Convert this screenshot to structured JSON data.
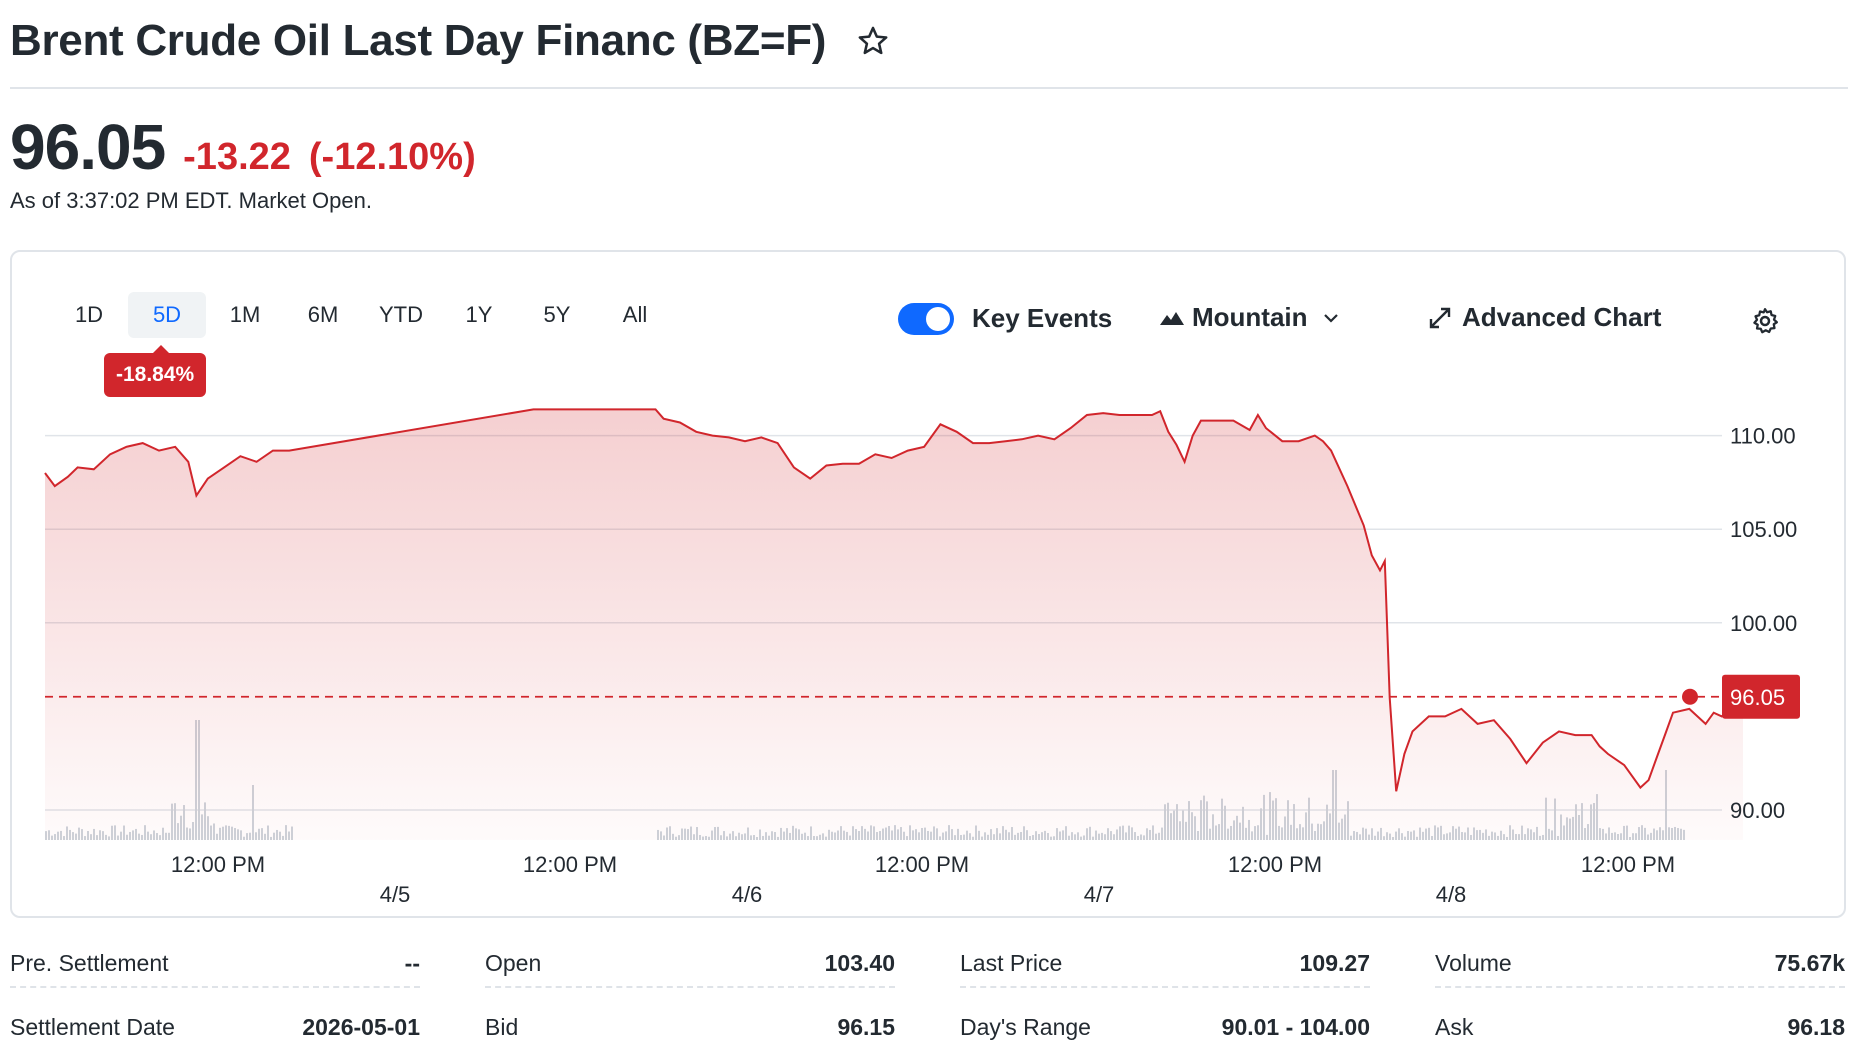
{
  "header": {
    "title": "Brent Crude Oil Last Day Financ (BZ=F)",
    "price": "96.05",
    "change": "-13.22",
    "change_pct": "(-12.10%)",
    "as_of": "As of 3:37:02 PM EDT. Market Open."
  },
  "toolbar": {
    "ranges": [
      "1D",
      "5D",
      "1M",
      "6M",
      "YTD",
      "1Y",
      "5Y",
      "All"
    ],
    "active_range": "5D",
    "range_change": "-18.84%",
    "key_events_label": "Key Events",
    "key_events_on": true,
    "chart_type_label": "Mountain",
    "advanced_label": "Advanced Chart"
  },
  "colors": {
    "negative": "#d1262c",
    "accent": "#0f69ff",
    "grid": "#e0e4e9"
  },
  "chart_data": {
    "type": "area",
    "y_ticks": [
      "110.00",
      "105.00",
      "100.00",
      "90.00"
    ],
    "ylim": [
      88.4,
      111.9
    ],
    "x_time_labels": [
      "12:00 PM",
      "12:00 PM",
      "12:00 PM",
      "12:00 PM",
      "12:00 PM"
    ],
    "x_date_labels": [
      "4/5",
      "4/6",
      "4/7",
      "4/8"
    ],
    "current_value": "96.05",
    "reference_line": 96.05,
    "grid": true,
    "series": [
      {
        "values": [
          [
            0,
            108.0
          ],
          [
            0.006,
            107.3
          ],
          [
            0.014,
            107.8
          ],
          [
            0.02,
            108.3
          ],
          [
            0.03,
            108.2
          ],
          [
            0.04,
            109.0
          ],
          [
            0.05,
            109.4
          ],
          [
            0.06,
            109.6
          ],
          [
            0.07,
            109.2
          ],
          [
            0.08,
            109.4
          ],
          [
            0.088,
            108.6
          ],
          [
            0.093,
            106.8
          ],
          [
            0.1,
            107.7
          ],
          [
            0.11,
            108.3
          ],
          [
            0.12,
            108.9
          ],
          [
            0.13,
            108.6
          ],
          [
            0.14,
            109.2
          ],
          [
            0.15,
            109.2
          ],
          [
            0.3,
            111.4
          ],
          [
            0.375,
            111.4
          ],
          [
            0.38,
            110.9
          ],
          [
            0.39,
            110.7
          ],
          [
            0.4,
            110.2
          ],
          [
            0.41,
            110.0
          ],
          [
            0.42,
            109.9
          ],
          [
            0.43,
            109.7
          ],
          [
            0.44,
            109.9
          ],
          [
            0.45,
            109.6
          ],
          [
            0.46,
            108.3
          ],
          [
            0.47,
            107.7
          ],
          [
            0.48,
            108.4
          ],
          [
            0.49,
            108.5
          ],
          [
            0.5,
            108.5
          ],
          [
            0.51,
            109.0
          ],
          [
            0.52,
            108.8
          ],
          [
            0.53,
            109.2
          ],
          [
            0.54,
            109.4
          ],
          [
            0.55,
            110.6
          ],
          [
            0.56,
            110.2
          ],
          [
            0.57,
            109.6
          ],
          [
            0.58,
            109.6
          ],
          [
            0.59,
            109.7
          ],
          [
            0.6,
            109.8
          ],
          [
            0.61,
            110.0
          ],
          [
            0.62,
            109.8
          ],
          [
            0.63,
            110.4
          ],
          [
            0.64,
            111.1
          ],
          [
            0.65,
            111.2
          ],
          [
            0.66,
            111.1
          ],
          [
            0.67,
            111.1
          ],
          [
            0.68,
            111.1
          ],
          [
            0.685,
            111.3
          ],
          [
            0.69,
            110.2
          ],
          [
            0.695,
            109.5
          ],
          [
            0.7,
            108.6
          ],
          [
            0.705,
            110.0
          ],
          [
            0.71,
            110.8
          ],
          [
            0.72,
            110.8
          ],
          [
            0.73,
            110.8
          ],
          [
            0.74,
            110.3
          ],
          [
            0.745,
            111.1
          ],
          [
            0.75,
            110.4
          ],
          [
            0.76,
            109.7
          ],
          [
            0.77,
            109.7
          ],
          [
            0.78,
            110.0
          ],
          [
            0.785,
            109.7
          ],
          [
            0.79,
            109.2
          ],
          [
            0.8,
            107.3
          ],
          [
            0.81,
            105.2
          ],
          [
            0.815,
            103.6
          ],
          [
            0.82,
            102.8
          ],
          [
            0.823,
            103.3
          ],
          [
            0.826,
            96.0
          ],
          [
            0.83,
            91.0
          ],
          [
            0.835,
            93.0
          ],
          [
            0.84,
            94.2
          ],
          [
            0.85,
            95.0
          ],
          [
            0.86,
            95.0
          ],
          [
            0.87,
            95.4
          ],
          [
            0.88,
            94.6
          ],
          [
            0.89,
            94.8
          ],
          [
            0.9,
            93.8
          ],
          [
            0.91,
            92.5
          ],
          [
            0.92,
            93.6
          ],
          [
            0.93,
            94.2
          ],
          [
            0.94,
            94.0
          ],
          [
            0.95,
            94.0
          ],
          [
            0.955,
            93.4
          ],
          [
            0.96,
            93.0
          ],
          [
            0.97,
            92.4
          ],
          [
            0.98,
            91.2
          ],
          [
            0.985,
            91.6
          ],
          [
            0.99,
            92.8
          ],
          [
            0.995,
            94.0
          ],
          [
            1.0,
            95.2
          ],
          [
            1.01,
            95.4
          ],
          [
            1.02,
            94.6
          ],
          [
            1.025,
            95.2
          ],
          [
            1.03,
            95.0
          ],
          [
            1.035,
            95.4
          ],
          [
            1.04,
            96.8
          ],
          [
            1.043,
            96.05
          ]
        ]
      }
    ]
  },
  "stats": [
    {
      "label": "Pre. Settlement",
      "value": "--"
    },
    {
      "label": "Open",
      "value": "103.40"
    },
    {
      "label": "Last Price",
      "value": "109.27"
    },
    {
      "label": "Volume",
      "value": "75.67k"
    },
    {
      "label": "Settlement Date",
      "value": "2026-05-01"
    },
    {
      "label": "Bid",
      "value": "96.15"
    },
    {
      "label": "Day's Range",
      "value": "90.01 - 104.00"
    },
    {
      "label": "Ask",
      "value": "96.18"
    }
  ]
}
